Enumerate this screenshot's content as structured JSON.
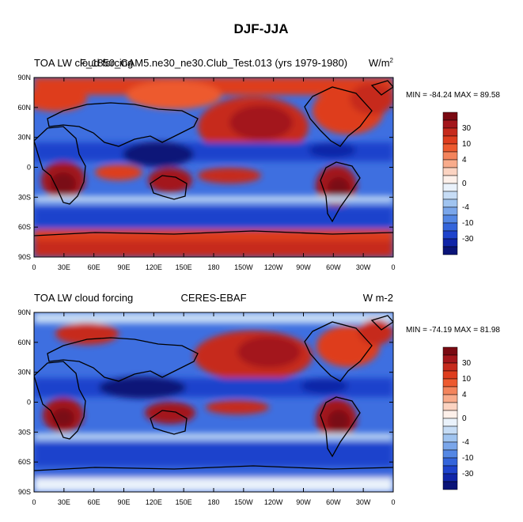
{
  "figure_title": "DJF-JJA",
  "colorbar": {
    "labels": [
      "30",
      "10",
      "4",
      "0",
      "-4",
      "-10",
      "-30"
    ],
    "colors": [
      "#7a0a12",
      "#a3161b",
      "#c62a1c",
      "#de3d1e",
      "#ed5a2f",
      "#f3845c",
      "#f8ab8b",
      "#fbd3c1",
      "#fdf0ea",
      "#eaf2fb",
      "#c6dcf5",
      "#a0c4f0",
      "#7aa6ea",
      "#5487e4",
      "#3465db",
      "#1e43cc",
      "#1025a8",
      "#0a1478"
    ]
  },
  "panels": [
    {
      "left_title": "TOA LW cloud forcing",
      "center_title": "F_1850_CAM5.ne30_ne30.Club_Test.013 (yrs 1979-1980)",
      "right_title": "W/m",
      "right_title_sup": "2",
      "stats": "MIN = -84.24 MAX =  89.58",
      "ylabels": [
        "90N",
        "60N",
        "30N",
        "0",
        "30S",
        "60S",
        "90S"
      ],
      "xlabels": [
        "0",
        "30E",
        "60E",
        "90E",
        "120E",
        "150E",
        "180",
        "150W",
        "120W",
        "90W",
        "60W",
        "30W",
        "0"
      ]
    },
    {
      "left_title": "TOA LW cloud forcing",
      "center_title": "CERES-EBAF",
      "right_title": "W m-2",
      "right_title_sup": "",
      "stats": "MIN = -74.19 MAX =  81.98",
      "ylabels": [
        "90N",
        "60N",
        "30N",
        "0",
        "30S",
        "60S",
        "90S"
      ],
      "xlabels": [
        "0",
        "30E",
        "60E",
        "90E",
        "120E",
        "150E",
        "180",
        "150W",
        "120W",
        "90W",
        "60W",
        "30W",
        "0"
      ]
    }
  ],
  "chart_data": [
    {
      "type": "heatmap",
      "title": "TOA LW cloud forcing — F_1850_CAM5.ne30_ne30.Club_Test.013 (yrs 1979-1980)",
      "units": "W/m2",
      "xlabel": "",
      "ylabel": "",
      "xlim": [
        0,
        360
      ],
      "ylim": [
        -90,
        90
      ],
      "min": -84.24,
      "max": 89.58,
      "contour_levels": [
        -30,
        -10,
        -4,
        0,
        4,
        10,
        30
      ]
    },
    {
      "type": "heatmap",
      "title": "TOA LW cloud forcing — CERES-EBAF",
      "units": "W m-2",
      "xlabel": "",
      "ylabel": "",
      "xlim": [
        0,
        360
      ],
      "ylim": [
        -90,
        90
      ],
      "min": -74.19,
      "max": 81.98,
      "contour_levels": [
        -30,
        -10,
        -4,
        0,
        4,
        10,
        30
      ]
    }
  ]
}
